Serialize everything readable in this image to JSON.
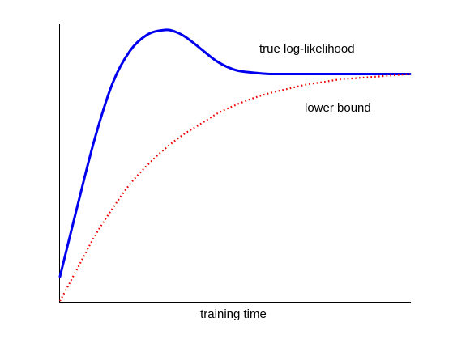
{
  "chart_data": {
    "type": "line",
    "title": "",
    "xlabel": "training time",
    "ylabel": "",
    "xlim": [
      0,
      1
    ],
    "ylim": [
      0,
      1
    ],
    "grid": false,
    "ticks": false,
    "series": [
      {
        "name": "true log-likelihood",
        "style": "solid",
        "color": "#0000ee",
        "x": [
          0,
          0.05,
          0.1,
          0.15,
          0.2,
          0.25,
          0.3,
          0.33,
          0.36,
          0.4,
          0.45,
          0.5,
          0.55,
          0.6,
          0.65,
          0.7,
          0.8,
          0.9,
          1.0
        ],
        "y": [
          0.09,
          0.35,
          0.6,
          0.8,
          0.92,
          0.98,
          0.997,
          0.99,
          0.97,
          0.93,
          0.88,
          0.85,
          0.84,
          0.835,
          0.835,
          0.835,
          0.835,
          0.835,
          0.835
        ]
      },
      {
        "name": "lower bound",
        "style": "dotted",
        "color": "#ee0000",
        "x": [
          0,
          0.05,
          0.1,
          0.15,
          0.2,
          0.25,
          0.3,
          0.35,
          0.4,
          0.45,
          0.5,
          0.55,
          0.6,
          0.65,
          0.7,
          0.75,
          0.8,
          0.85,
          0.9,
          0.95,
          1.0
        ],
        "y": [
          0.0,
          0.12,
          0.24,
          0.34,
          0.43,
          0.5,
          0.56,
          0.61,
          0.65,
          0.69,
          0.72,
          0.745,
          0.765,
          0.78,
          0.795,
          0.805,
          0.815,
          0.82,
          0.825,
          0.83,
          0.835
        ]
      }
    ]
  }
}
